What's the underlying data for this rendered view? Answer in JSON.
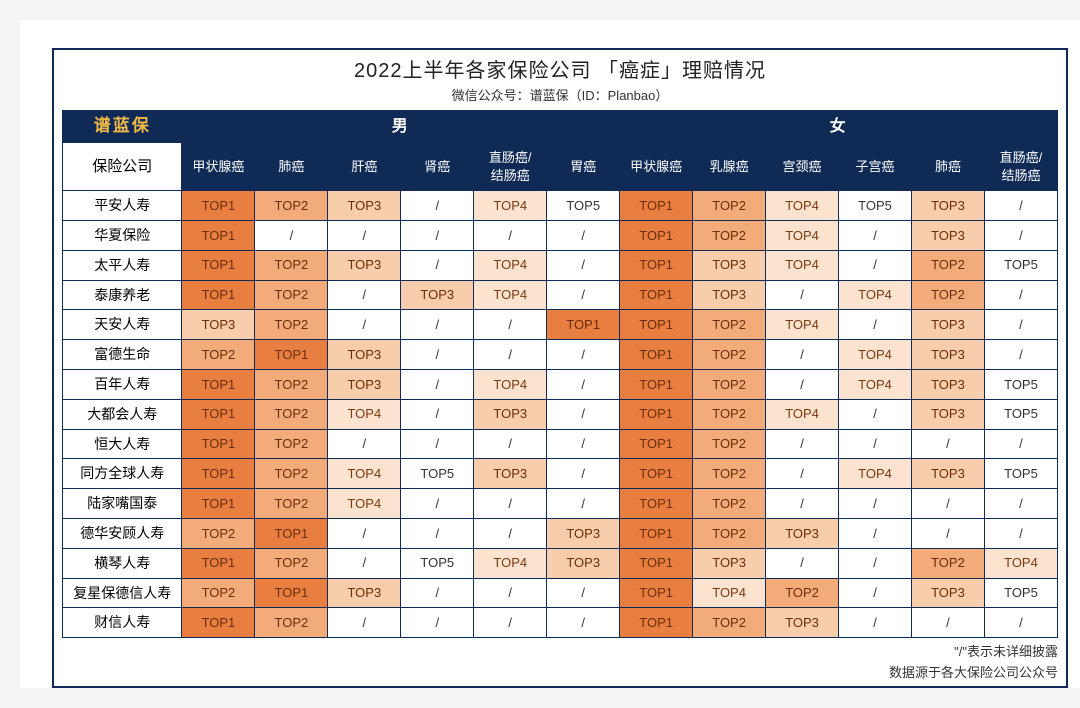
{
  "title": "2022上半年各家保险公司 「癌症」理赔情况",
  "subtitle": "微信公众号：谱蓝保（ID：Planbao）",
  "brand": "谱蓝保",
  "gender_headers": [
    "男",
    "女"
  ],
  "company_header": "保险公司",
  "male_cols": [
    "甲状腺癌",
    "肺癌",
    "肝癌",
    "肾癌",
    "直肠癌/\n结肠癌",
    "胃癌"
  ],
  "female_cols": [
    "甲状腺癌",
    "乳腺癌",
    "宫颈癌",
    "子宫癌",
    "肺癌",
    "直肠癌/\n结肠癌"
  ],
  "footnote1": "\"/\"表示未详细披露",
  "footnote2": "数据源于各大保险公司公众号",
  "colors": {
    "header_bg": "#0e2a55",
    "brand_text": "#f0b848",
    "rank1": "#e87f40",
    "rank2": "#f3ab7a",
    "rank3": "#f8cdab",
    "rank4": "#fce3cf",
    "rank5": "#ffffff",
    "none": "#ffffff",
    "border": "#0e2a55"
  },
  "rank_labels": {
    "1": "TOP1",
    "2": "TOP2",
    "3": "TOP3",
    "4": "TOP4",
    "5": "TOP5",
    "none": "/"
  },
  "rows": [
    {
      "company": "平安人寿",
      "male": [
        "1",
        "2",
        "3",
        "none",
        "4",
        "5"
      ],
      "female": [
        "1",
        "2",
        "4",
        "5",
        "3",
        "none"
      ]
    },
    {
      "company": "华夏保险",
      "male": [
        "1",
        "none",
        "none",
        "none",
        "none",
        "none"
      ],
      "female": [
        "1",
        "2",
        "4",
        "none",
        "3",
        "none"
      ]
    },
    {
      "company": "太平人寿",
      "male": [
        "1",
        "2",
        "3",
        "none",
        "4",
        "none"
      ],
      "female": [
        "1",
        "3",
        "4",
        "none",
        "2",
        "5"
      ]
    },
    {
      "company": "泰康养老",
      "male": [
        "1",
        "2",
        "none",
        "3",
        "4",
        "none"
      ],
      "female": [
        "1",
        "3",
        "none",
        "4",
        "2",
        "none"
      ]
    },
    {
      "company": "天安人寿",
      "male": [
        "3",
        "2",
        "none",
        "none",
        "none",
        "1"
      ],
      "female": [
        "1",
        "2",
        "4",
        "none",
        "3",
        "none"
      ]
    },
    {
      "company": "富德生命",
      "male": [
        "2",
        "1",
        "3",
        "none",
        "none",
        "none"
      ],
      "female": [
        "1",
        "2",
        "none",
        "4",
        "3",
        "none"
      ]
    },
    {
      "company": "百年人寿",
      "male": [
        "1",
        "2",
        "3",
        "none",
        "4",
        "none"
      ],
      "female": [
        "1",
        "2",
        "none",
        "4",
        "3",
        "5"
      ]
    },
    {
      "company": "大都会人寿",
      "male": [
        "1",
        "2",
        "4",
        "none",
        "3",
        "none"
      ],
      "female": [
        "1",
        "2",
        "4",
        "none",
        "3",
        "5"
      ]
    },
    {
      "company": "恒大人寿",
      "male": [
        "1",
        "2",
        "none",
        "none",
        "none",
        "none"
      ],
      "female": [
        "1",
        "2",
        "none",
        "none",
        "none",
        "none"
      ]
    },
    {
      "company": "同方全球人寿",
      "male": [
        "1",
        "2",
        "4",
        "5",
        "3",
        "none"
      ],
      "female": [
        "1",
        "2",
        "none",
        "4",
        "3",
        "5"
      ]
    },
    {
      "company": "陆家嘴国泰",
      "male": [
        "1",
        "2",
        "4",
        "none",
        "none",
        "none"
      ],
      "female": [
        "1",
        "2",
        "none",
        "none",
        "none",
        "none"
      ]
    },
    {
      "company": "德华安顾人寿",
      "male": [
        "2",
        "1",
        "none",
        "none",
        "none",
        "3"
      ],
      "female": [
        "1",
        "2",
        "3",
        "none",
        "none",
        "none"
      ]
    },
    {
      "company": "横琴人寿",
      "male": [
        "1",
        "2",
        "none",
        "5",
        "4",
        "3"
      ],
      "female": [
        "1",
        "3",
        "none",
        "none",
        "2",
        "4"
      ]
    },
    {
      "company": "复星保德信人寿",
      "male": [
        "2",
        "1",
        "3",
        "none",
        "none",
        "none"
      ],
      "female": [
        "1",
        "4",
        "2",
        "none",
        "3",
        "5"
      ]
    },
    {
      "company": "财信人寿",
      "male": [
        "1",
        "2",
        "none",
        "none",
        "none",
        "none"
      ],
      "female": [
        "1",
        "2",
        "3",
        "none",
        "none",
        "none"
      ]
    }
  ],
  "col_widths": {
    "company": "12%",
    "cell": "7.33%"
  }
}
